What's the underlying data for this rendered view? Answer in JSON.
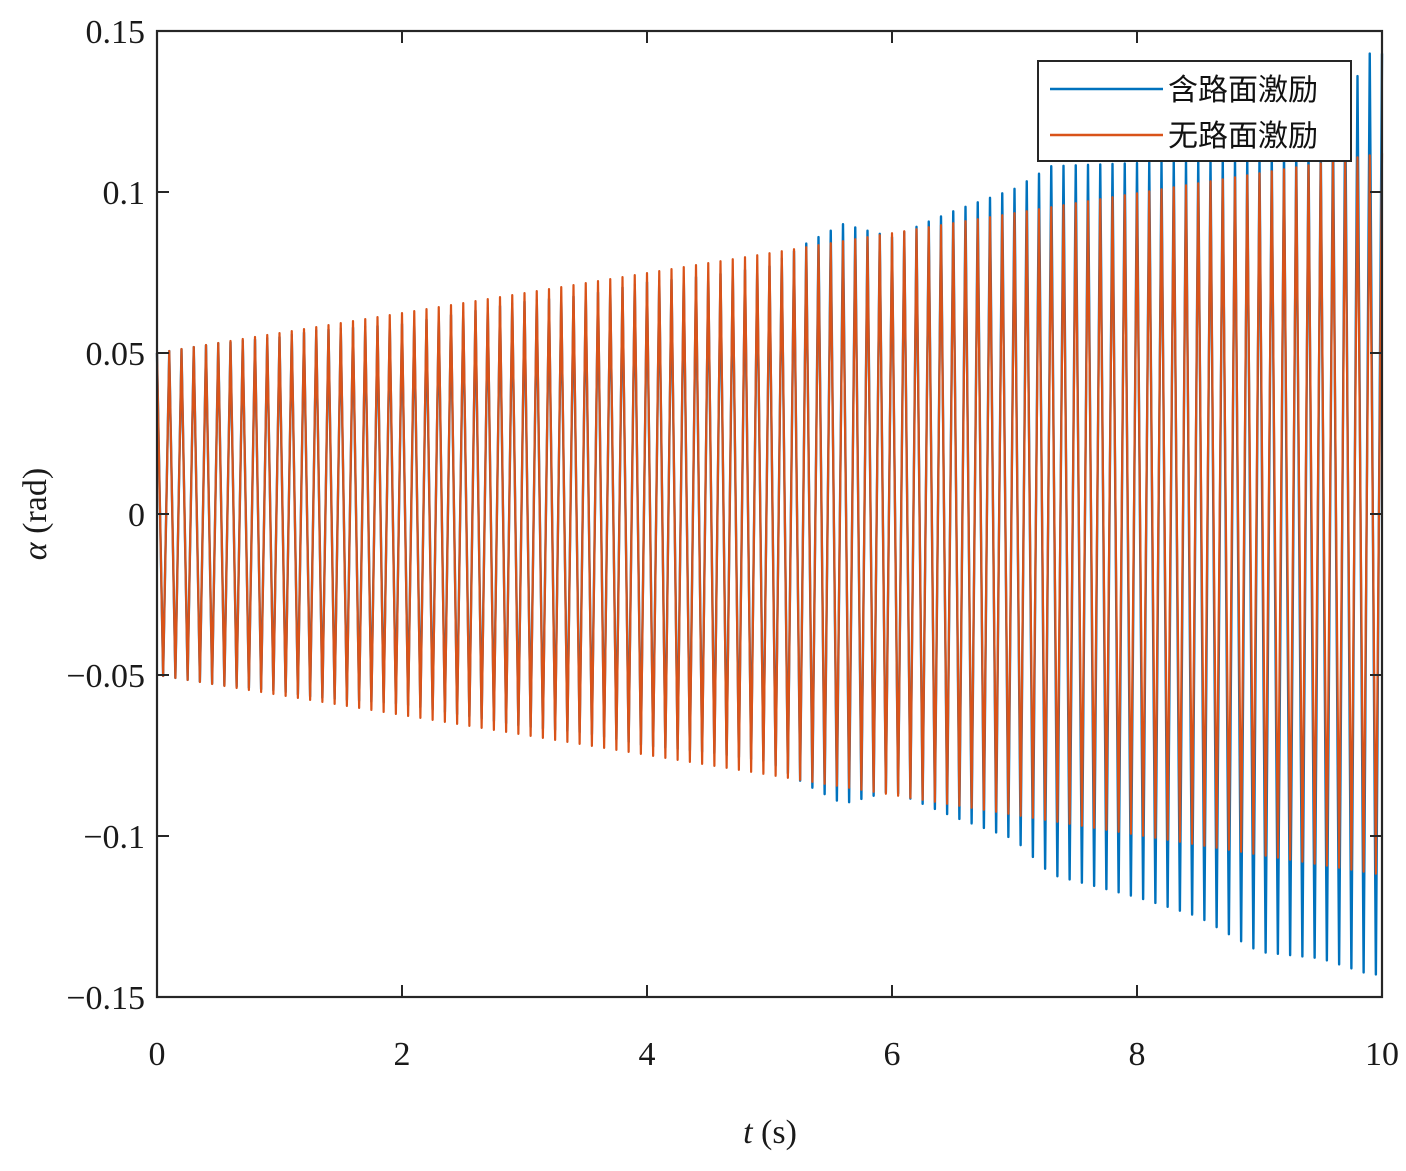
{
  "chart_data": {
    "type": "line",
    "title": "",
    "xlabel": {
      "italic": "t",
      "rest": " (s)"
    },
    "ylabel": {
      "italic": "α",
      "rest": " (rad)"
    },
    "xlim": [
      0,
      10
    ],
    "ylim": [
      -0.15,
      0.15
    ],
    "x_ticks": [
      0,
      2,
      4,
      6,
      8,
      10
    ],
    "x_tick_labels": [
      "0",
      "2",
      "4",
      "6",
      "8",
      "10"
    ],
    "y_ticks": [
      0.15,
      0.1,
      0.05,
      0,
      -0.05,
      -0.1,
      -0.15
    ],
    "y_tick_labels": [
      "0.15",
      "0.1",
      "0.05",
      "0",
      "−0.05",
      "−0.1",
      "−0.15"
    ],
    "grid": false,
    "legend_position": "top-right",
    "oscillation_cycles": 100,
    "series": [
      {
        "name": "含路面激励",
        "color": "#0072BD",
        "envelope": {
          "t": [
            0,
            0.5,
            1.0,
            1.3,
            2.0,
            3.0,
            3.5,
            4.0,
            4.5,
            5.0,
            5.3,
            5.6,
            6.0,
            6.5,
            7.0,
            7.3,
            8.0,
            8.5,
            9.0,
            9.5,
            9.9,
            10.0
          ],
          "upper": [
            0.05,
            0.053,
            0.055,
            0.057,
            0.059,
            0.066,
            0.068,
            0.072,
            0.074,
            0.077,
            0.084,
            0.09,
            0.086,
            0.094,
            0.101,
            0.108,
            0.109,
            0.11,
            0.111,
            0.115,
            0.143,
            0.143
          ],
          "lower": [
            -0.05,
            -0.053,
            -0.055,
            -0.057,
            -0.059,
            -0.066,
            -0.068,
            -0.072,
            -0.074,
            -0.077,
            -0.084,
            -0.09,
            -0.086,
            -0.094,
            -0.101,
            -0.112,
            -0.119,
            -0.125,
            -0.136,
            -0.138,
            -0.143,
            -0.143
          ]
        }
      },
      {
        "name": "无路面激励",
        "color": "#D95319",
        "envelope": {
          "t": [
            0,
            10
          ],
          "upper": [
            0.05,
            0.112
          ],
          "lower": [
            -0.05,
            -0.112
          ]
        }
      }
    ]
  }
}
